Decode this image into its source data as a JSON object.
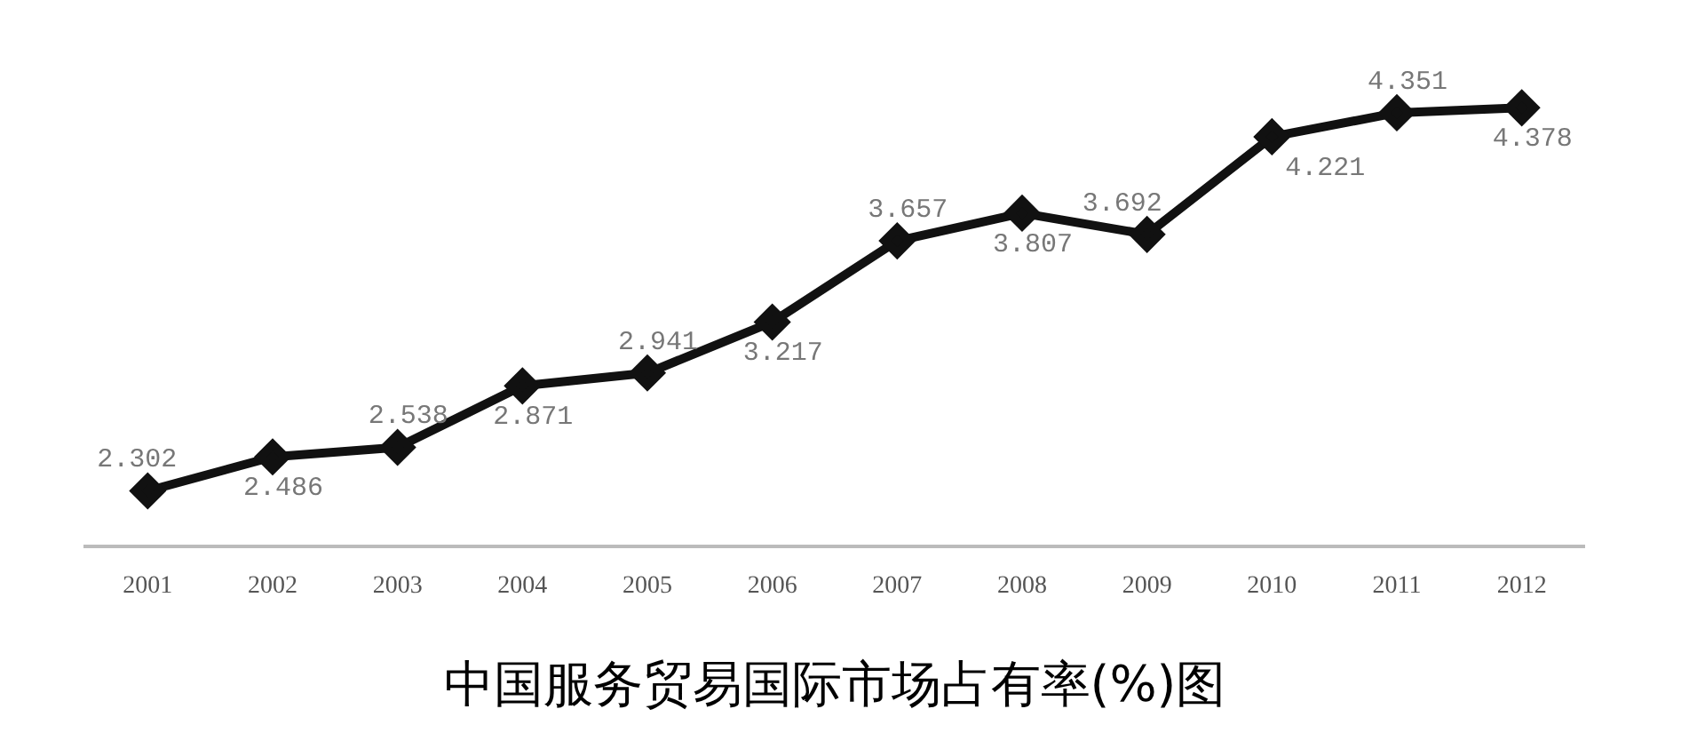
{
  "chart_data": {
    "type": "line",
    "title": "中国服务贸易国际市场占有率(%)图",
    "categories": [
      "2001",
      "2002",
      "2003",
      "2004",
      "2005",
      "2006",
      "2007",
      "2008",
      "2009",
      "2010",
      "2011",
      "2012"
    ],
    "series": [
      {
        "color": "#111111",
        "values": [
          2.302,
          2.486,
          2.538,
          2.871,
          2.941,
          3.217,
          3.657,
          3.807,
          3.692,
          4.221,
          4.351,
          4.378
        ]
      }
    ],
    "tick_labels": "x",
    "grid": false,
    "legend": false,
    "marker": "diamond",
    "data_labels": true
  }
}
